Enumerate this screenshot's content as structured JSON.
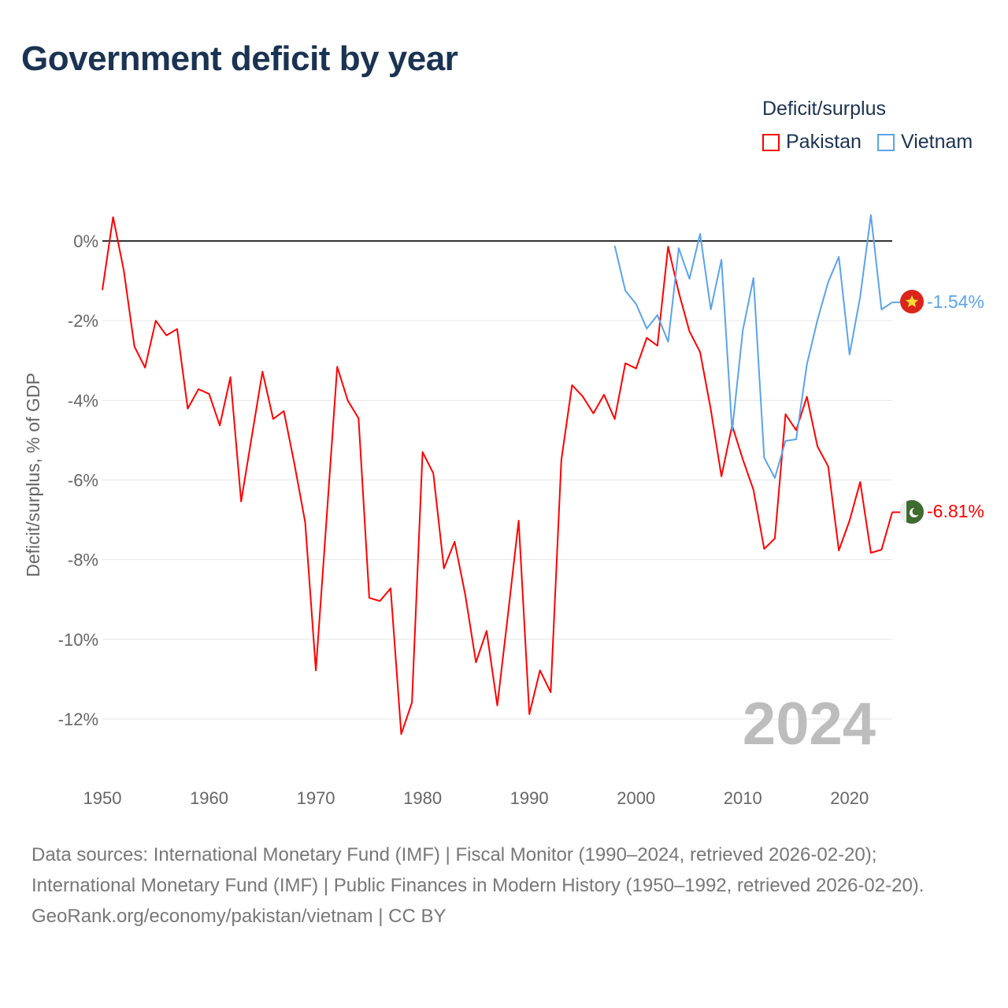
{
  "title": "Government deficit by year",
  "legend": {
    "title": "Deficit/surplus",
    "items": [
      {
        "name": "Pakistan",
        "color": "#ff0000"
      },
      {
        "name": "Vietnam",
        "color": "#5ba3ea"
      }
    ]
  },
  "year_label": "2024",
  "end_labels": {
    "vietnam": "-1.54%",
    "pakistan": "-6.81%"
  },
  "sources": {
    "line1": "Data sources: International Monetary Fund (IMF) | Fiscal Monitor (1990–2024, retrieved 2026-02-20);",
    "line2": "International Monetary Fund (IMF) | Public Finances in Modern History (1950–1992, retrieved 2026-02-20).",
    "line3": "GeoRank.org/economy/pakistan/vietnam | CC BY"
  },
  "chart_data": {
    "type": "line",
    "title": "Government deficit by year",
    "xlabel": "",
    "ylabel": "Deficit/surplus, % of GDP",
    "xlim": [
      1950,
      2024
    ],
    "ylim": [
      -13,
      0.8
    ],
    "x_ticks": [
      1950,
      1960,
      1970,
      1980,
      1990,
      2000,
      2010,
      2020
    ],
    "y_ticks": [
      0,
      -2,
      -4,
      -6,
      -8,
      -10,
      -12
    ],
    "y_tick_labels": [
      "0%",
      "-2%",
      "-4%",
      "-6%",
      "-8%",
      "-10%",
      "-12%"
    ],
    "grid": true,
    "legend_position": "top-right",
    "series": [
      {
        "name": "Pakistan",
        "color": "#ff0000",
        "start_year": 1950,
        "values": [
          -1.23,
          0.6,
          -0.73,
          -2.65,
          -3.18,
          -2.0,
          -2.37,
          -2.21,
          -4.21,
          -3.72,
          -3.84,
          -4.63,
          -3.42,
          -6.54,
          -4.9,
          -3.28,
          -4.47,
          -4.27,
          -5.61,
          -7.06,
          -10.78,
          -7.0,
          -3.16,
          -4.01,
          -4.45,
          -8.96,
          -9.04,
          -8.72,
          -12.38,
          -11.59,
          -5.3,
          -5.83,
          -8.22,
          -7.55,
          -8.88,
          -10.58,
          -9.79,
          -11.66,
          -9.37,
          -7.02,
          -11.88,
          -10.78,
          -11.33,
          -5.5,
          -3.62,
          -3.9,
          -4.33,
          -3.86,
          -4.47,
          -3.07,
          -3.2,
          -2.43,
          -2.63,
          -0.14,
          -1.29,
          -2.27,
          -2.79,
          -4.23,
          -5.91,
          -4.63,
          -5.48,
          -6.25,
          -7.73,
          -7.47,
          -4.35,
          -4.75,
          -3.91,
          -5.16,
          -5.66,
          -7.77,
          -7.02,
          -6.05,
          -7.83,
          -7.75,
          -6.81
        ]
      },
      {
        "name": "Vietnam",
        "color": "#5ba3ea",
        "start_year": 1998,
        "values": [
          -0.12,
          -1.25,
          -1.58,
          -2.2,
          -1.86,
          -2.53,
          -0.18,
          -0.95,
          0.18,
          -1.72,
          -0.47,
          -4.77,
          -2.25,
          -0.93,
          -5.44,
          -5.95,
          -5.02,
          -4.98,
          -3.1,
          -1.98,
          -1.03,
          -0.4,
          -2.85,
          -1.4,
          0.65,
          -1.72,
          -1.54
        ]
      }
    ]
  }
}
